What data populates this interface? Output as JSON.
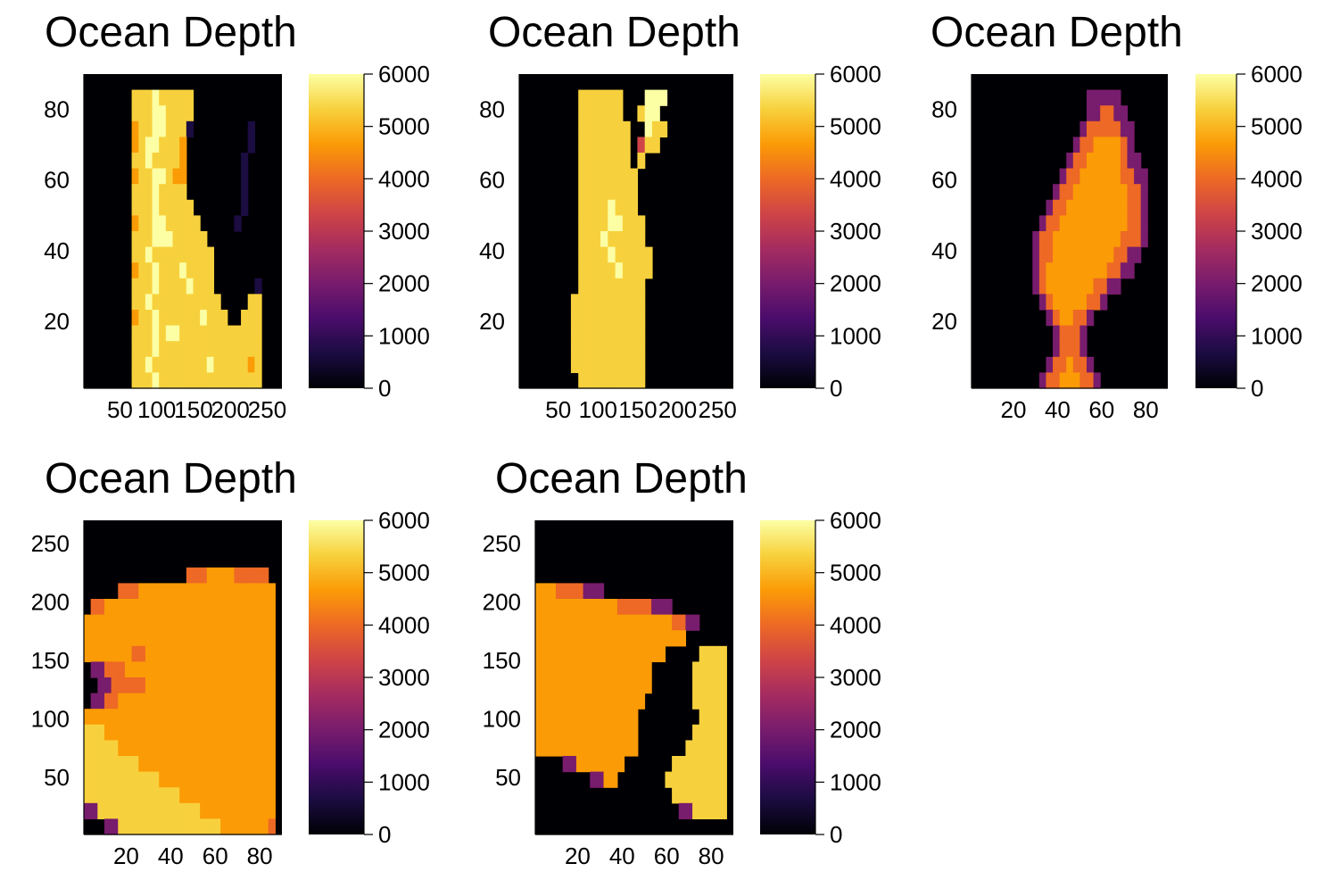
{
  "figure": {
    "colormap": "inferno",
    "colormap_stops": [
      "#000004",
      "#1b0c41",
      "#4a0c6b",
      "#781c6d",
      "#a52c60",
      "#cf4446",
      "#ed6925",
      "#fb9b06",
      "#f7d13d",
      "#fcffa4"
    ],
    "plot_bg": "#000004"
  },
  "chart_data": [
    {
      "type": "heatmap",
      "title": "Ocean Depth",
      "description": "N-S elongated slab; bright band on left half, large dark basin upper right",
      "xticks": [
        "50",
        "100",
        "150",
        "200",
        "250"
      ],
      "yticks": [
        "20",
        "40",
        "60",
        "80"
      ],
      "xlim": [
        1,
        270
      ],
      "ylim": [
        1,
        90
      ],
      "clim": [
        0,
        6000
      ],
      "colorbar_ticks": [
        "0",
        "1000",
        "2000",
        "3000",
        "4000",
        "5000",
        "6000"
      ],
      "grid": false,
      "pattern": [
        "00000000000000000000000000000",
        "00000008889888880000000000000",
        "00000008889988880000000000000",
        "00000007889988810000000010000",
        "00000007899888700000000010000",
        "00000008898888700000000100000",
        "00000007889987700000000100000",
        "00000008889888800000000100000",
        "00000008889888880000000100000",
        "00000007889988888000001000000",
        "00000008889998888800000000000",
        "00000008898888888880000000000",
        "00000007889888988880000000000",
        "00000008889888898880000001000",
        "00000008898888888888000088000",
        "00000007889888888988800888000",
        "00000008889899888888888888000",
        "00000008889888888888888888000",
        "00000008898888888898888878000",
        "00000008889888888888888888000"
      ]
    },
    {
      "type": "heatmap",
      "title": "Ocean Depth",
      "description": "narrow bright N-S band through middle, bright patch at top right",
      "xticks": [
        "50",
        "100",
        "150",
        "200",
        "250"
      ],
      "yticks": [
        "20",
        "40",
        "60",
        "80"
      ],
      "xlim": [
        1,
        270
      ],
      "ylim": [
        1,
        90
      ],
      "clim": [
        0,
        6000
      ],
      "colorbar_ticks": [
        "0",
        "1000",
        "2000",
        "3000",
        "4000",
        "5000",
        "6000"
      ],
      "grid": false,
      "pattern": [
        "00000000000000000000000000000",
        "00000000888888000999000000000",
        "00000000888888008990000000000",
        "00000000888888800988000000000",
        "00000000888888805880000000000",
        "00000000888888808000000000000",
        "00000000888888880000000000000",
        "00000000888888880000000000000",
        "00000000888898880000000000000",
        "00000000888899888000000000000",
        "00000000888988888000000000000",
        "00000000888898888800000000000",
        "00000000888889888800000000000",
        "00000000888888888000000000000",
        "00000008888888888000000000000",
        "00000008888888888000000000000",
        "00000008888888888000000000000",
        "00000008888888888000000000000",
        "00000008888888888000000000000",
        "00000000888888888000000000000"
      ]
    },
    {
      "type": "heatmap",
      "title": "Ocean Depth",
      "description": "diagonal orange band from upper right to lower middle with purple halo",
      "xticks": [
        "20",
        "40",
        "60",
        "80"
      ],
      "yticks": [
        "20",
        "40",
        "60",
        "80"
      ],
      "xlim": [
        1,
        90
      ],
      "ylim": [
        1,
        90
      ],
      "clim": [
        0,
        6000
      ],
      "colorbar_ticks": [
        "0",
        "1000",
        "2000",
        "3000",
        "4000",
        "5000",
        "6000"
      ],
      "grid": false,
      "pattern": [
        "00000000000000000000000000000",
        "00000000000000000333330000000",
        "00000000000000000336633000000",
        "00000000000000003666663300000",
        "00000000000000036677776300000",
        "00000000000000366777776330000",
        "00000000000003667777776633000",
        "00000000000036677777777663000",
        "00000000000366777777777663000",
        "00000000003667777777777663000",
        "00000000036677777777776663000",
        "00000000036677777777766330000",
        "00000000036777777777663300000",
        "00000000036777777766330000000",
        "00000000003677777663000000000",
        "00000000000367766300000000000",
        "00000000000036663000000000000",
        "00000000000036663000000000000",
        "00000000000366766300000000000",
        "00000000003667776630000000000"
      ]
    },
    {
      "type": "heatmap",
      "title": "Ocean Depth",
      "description": "wide bright region across middle, dark at top and bottom edges",
      "xticks": [
        "20",
        "40",
        "60",
        "80"
      ],
      "yticks": [
        "50",
        "100",
        "150",
        "200",
        "250"
      ],
      "xlim": [
        1,
        90
      ],
      "ylim": [
        1,
        270
      ],
      "clim": [
        0,
        6000
      ],
      "colorbar_ticks": [
        "0",
        "1000",
        "2000",
        "3000",
        "4000",
        "5000",
        "6000"
      ],
      "grid": false,
      "pattern": [
        "00000000000000000000000000000",
        "00000000000000000000000000000",
        "00000000000000000000000000000",
        "00000000000000066677776666600",
        "00000666777777777777777777770",
        "06677777777777777777777777770",
        "77777777777777777777777777770",
        "77777777777777777777777777770",
        "77777776677777777777777777770",
        "03366677777777777777777777770",
        "00336666677777777777777777770",
        "03366777777777777777777777770",
        "77777777777777777777777777770",
        "88877777777777777777777777770",
        "88888777777777777777777777770",
        "88888888777777777777777777770",
        "88888888888777777777777777770",
        "88888888888888777777777777770",
        "33888888888888888777777777770",
        "00033888888888888888777777760"
      ]
    },
    {
      "type": "heatmap",
      "title": "Ocean Depth",
      "description": "bright upper-left band, dark basin center-right and bottom, bright patches right",
      "xticks": [
        "20",
        "40",
        "60",
        "80"
      ],
      "yticks": [
        "50",
        "100",
        "150",
        "200",
        "250"
      ],
      "xlim": [
        1,
        90
      ],
      "ylim": [
        1,
        270
      ],
      "clim": [
        0,
        6000
      ],
      "colorbar_ticks": [
        "0",
        "1000",
        "2000",
        "3000",
        "4000",
        "5000",
        "6000"
      ],
      "grid": false,
      "pattern": [
        "00000000000000000000000000000",
        "00000000000000000000000000000",
        "00000000000000000000000000000",
        "00000000000000000000000000000",
        "77766663330000000000000000000",
        "77777777777766666333000000000",
        "77777777777777777777663300000",
        "77777777777777777777770000000",
        "77777777777777777770000088880",
        "77777777777777777000000888880",
        "77777777777777777000000888880",
        "77777777777777770000000888880",
        "77777777777777700000000088880",
        "77777777777777700000000888880",
        "77777777777777700000008888880",
        "00003377777770000000888888880",
        "00000000337700000008888888880",
        "00000000000000000000888888880",
        "00000000000000000000033888880",
        "00000000000000000000000000000"
      ]
    }
  ]
}
